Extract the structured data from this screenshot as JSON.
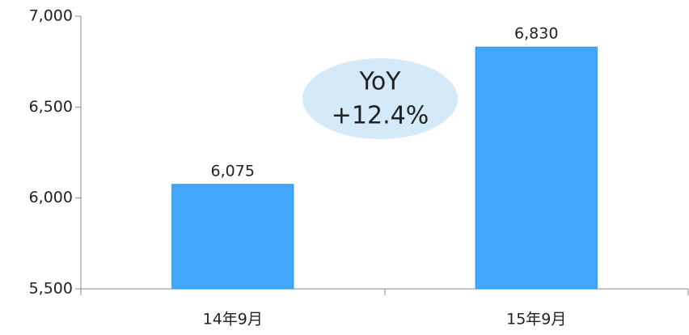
{
  "chart_data": {
    "type": "bar",
    "categories": [
      "14年9月",
      "15年9月"
    ],
    "values": [
      6075,
      6830
    ],
    "value_labels": [
      "6,075",
      "6,830"
    ],
    "color": "#42a7fb",
    "ylim": [
      5500,
      7000
    ],
    "yticks": [
      {
        "value": 5500,
        "label": "5,500"
      },
      {
        "value": 6000,
        "label": "6,000"
      },
      {
        "value": 6500,
        "label": "6,500"
      },
      {
        "value": 7000,
        "label": "7,000"
      }
    ],
    "grid": false,
    "annotation": [
      "YoY",
      "+12.4%"
    ]
  }
}
